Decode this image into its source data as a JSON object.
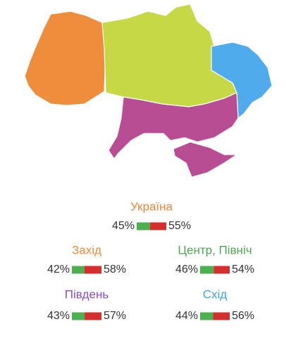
{
  "regions": [
    {
      "name": "Україна",
      "label_color": "#e8883a",
      "values": [
        45,
        55
      ],
      "value_labels": [
        "45%",
        "55%"
      ]
    },
    {
      "name": "Захід",
      "label_color": "#ec8a3a",
      "map_color": "#ee8d3c",
      "values": [
        42,
        58
      ],
      "value_labels": [
        "42%",
        "58%"
      ]
    },
    {
      "name": "Центр, Північ",
      "label_color": "#4ca552",
      "map_color": "#c6d846",
      "values": [
        46,
        54
      ],
      "value_labels": [
        "46%",
        "54%"
      ]
    },
    {
      "name": "Південь",
      "label_color": "#8a4cc4",
      "map_color": "#b94d94",
      "values": [
        43,
        57
      ],
      "value_labels": [
        "43%",
        "57%"
      ]
    },
    {
      "name": "Схід",
      "label_color": "#3ca2e2",
      "map_color": "#4fabec",
      "values": [
        44,
        56
      ],
      "value_labels": [
        "44%",
        "56%"
      ]
    }
  ],
  "bar_colors": [
    "#4caf50",
    "#d32f2f"
  ]
}
